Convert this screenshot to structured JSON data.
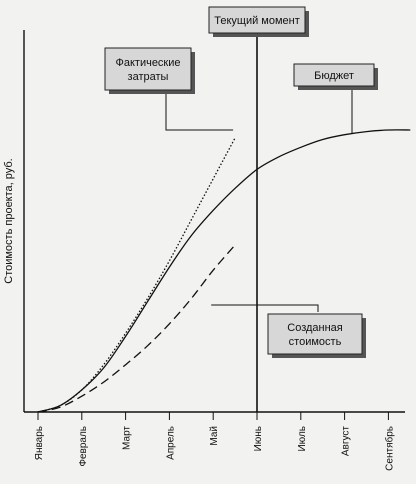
{
  "chart_data": {
    "type": "line",
    "title": "",
    "xlabel": "",
    "ylabel": "Стоимость проекта, руб.",
    "categories": [
      "Январь",
      "Февраль",
      "Март",
      "Апрель",
      "Май",
      "Июнь",
      "Июль",
      "Август",
      "Сентябрь"
    ],
    "ylim": [
      0,
      100
    ],
    "current_moment_label": "Текущий момент",
    "current_moment_position": 5,
    "series": [
      {
        "name": "Бюджет",
        "style": "solid",
        "x": [
          0,
          0.5,
          1,
          1.5,
          2,
          2.5,
          3,
          3.5,
          4,
          4.5,
          5,
          5.5,
          6,
          6.5,
          7,
          7.5,
          8,
          8.5
        ],
        "values": [
          0,
          2,
          7,
          14,
          24,
          35,
          46,
          56,
          64,
          71,
          77,
          81,
          84,
          86.5,
          88,
          89,
          89.5,
          89.5
        ]
      },
      {
        "name": "Фактические затраты",
        "style": "dotted",
        "x": [
          0,
          0.5,
          1,
          1.5,
          2,
          2.5,
          3,
          3.5,
          4,
          4.5
        ],
        "values": [
          0,
          2,
          7,
          15,
          25,
          36,
          48,
          61,
          74,
          87
        ]
      },
      {
        "name": "Созданная стоимость",
        "style": "dashed",
        "x": [
          0,
          0.5,
          1,
          1.5,
          2,
          2.5,
          3,
          3.5,
          4,
          4.5
        ],
        "values": [
          0,
          1.5,
          5,
          9.5,
          15,
          21,
          28,
          36,
          45,
          53
        ]
      }
    ],
    "labels": {
      "actual": [
        "Фактические",
        "затраты"
      ],
      "budget": [
        "Бюджет"
      ],
      "earned": [
        "Созданная",
        "стоимость"
      ]
    },
    "grid": false,
    "colors": {
      "line": "#111111",
      "box_fill": "#d7d7d7",
      "box_shadow": "#555555"
    }
  }
}
